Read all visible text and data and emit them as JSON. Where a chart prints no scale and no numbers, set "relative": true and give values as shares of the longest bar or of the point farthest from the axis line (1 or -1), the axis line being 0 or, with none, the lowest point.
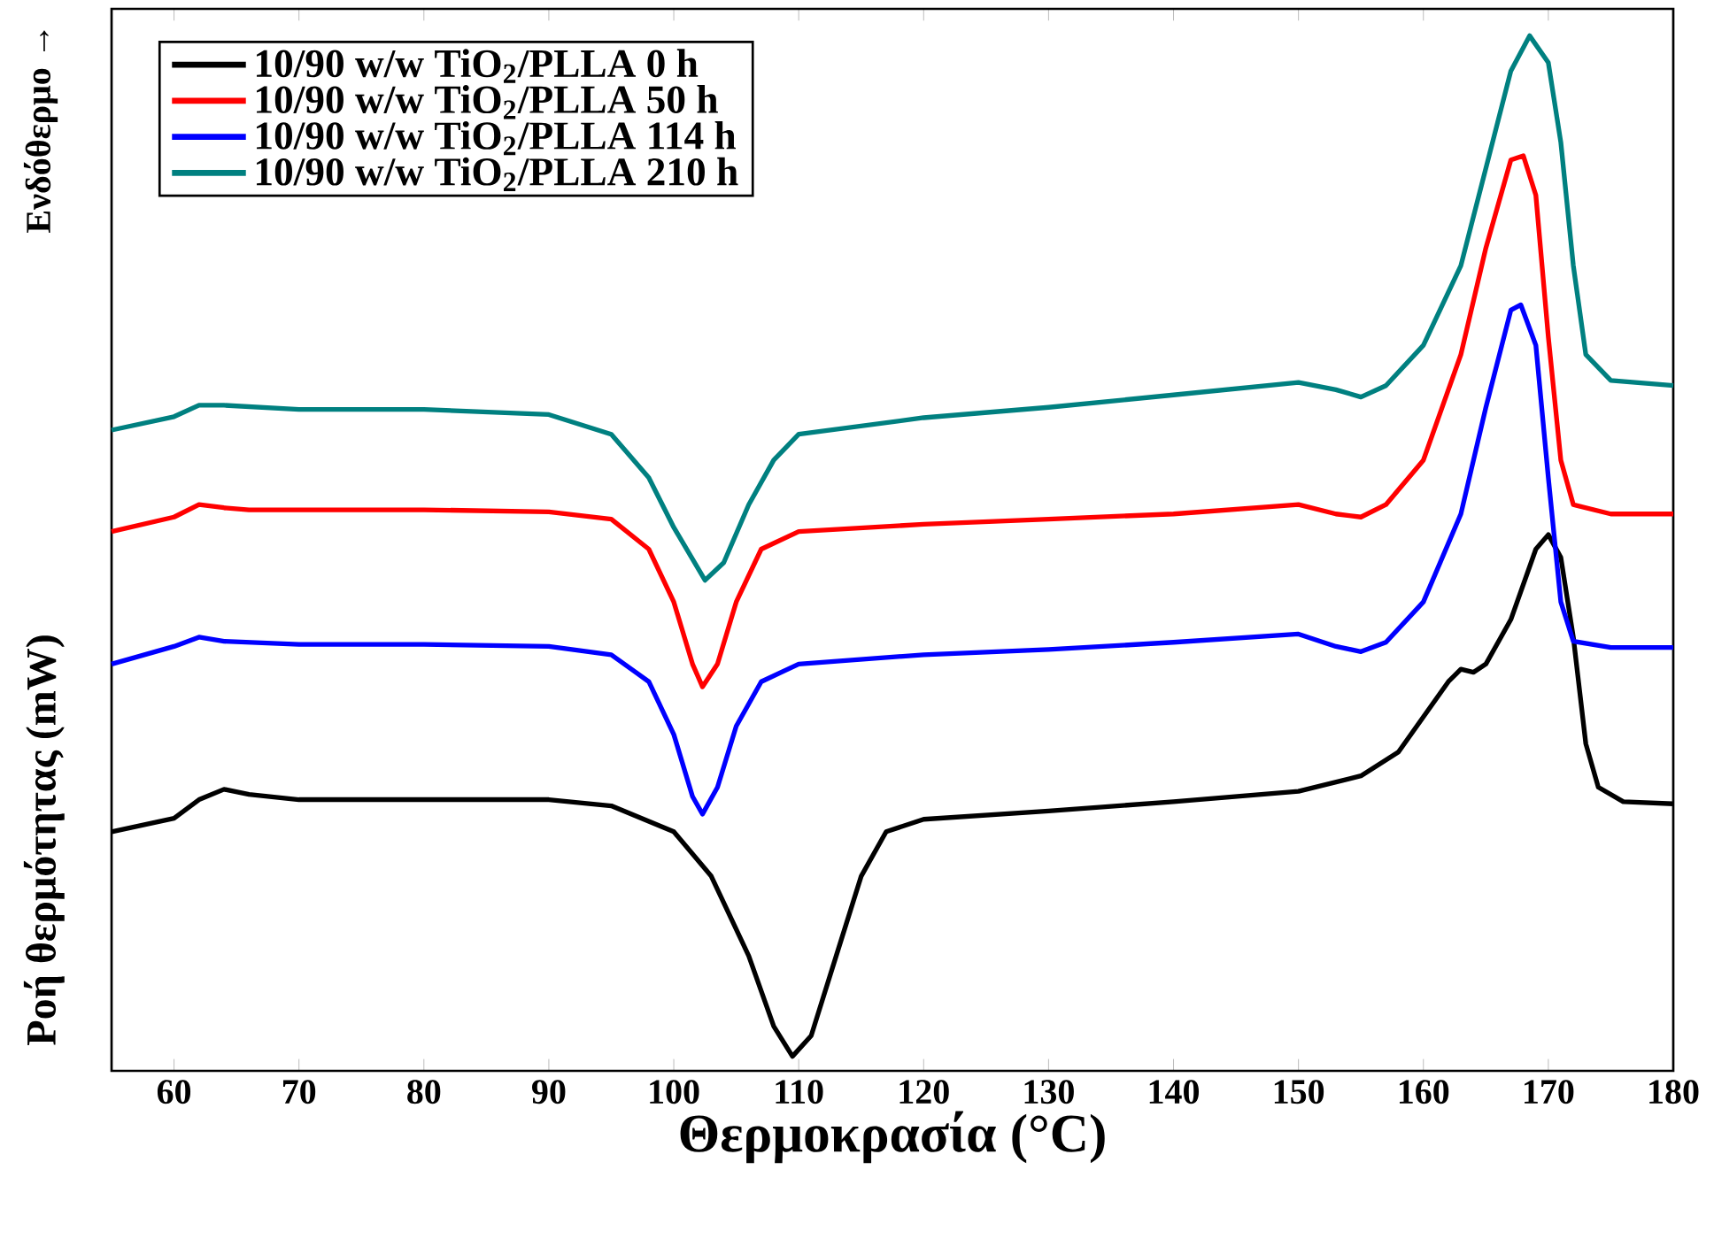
{
  "chart_data": {
    "type": "line",
    "relative": true,
    "xlabel": "Θερμοκρασία (°C)",
    "ylabel": "Ροή θερμότητας (mW)",
    "annotations": [
      "Ενδόθερμο →"
    ],
    "xlim": [
      55,
      180
    ],
    "xticks": [
      60,
      70,
      80,
      90,
      100,
      110,
      120,
      130,
      140,
      150,
      160,
      170,
      180
    ],
    "legend": "top left",
    "series": [
      {
        "name": "10/90 w/w TiO$_{2}$/PLLA 0 h",
        "color": "#000000",
        "x": [
          55,
          60,
          62,
          64,
          66,
          70,
          80,
          90,
          95,
          100,
          103,
          106,
          108,
          109.5,
          111,
          113,
          115,
          117,
          120,
          130,
          140,
          150,
          155,
          158,
          160,
          162,
          163,
          164,
          165,
          167,
          169,
          170,
          171,
          172,
          173,
          174,
          176,
          180
        ],
        "values": [
          0.231,
          0.244,
          0.262,
          0.272,
          0.267,
          0.262,
          0.262,
          0.262,
          0.256,
          0.231,
          0.188,
          0.111,
          0.043,
          0.014,
          0.034,
          0.111,
          0.188,
          0.231,
          0.243,
          0.251,
          0.26,
          0.27,
          0.285,
          0.308,
          0.342,
          0.376,
          0.388,
          0.385,
          0.393,
          0.436,
          0.504,
          0.518,
          0.496,
          0.419,
          0.316,
          0.274,
          0.26,
          0.258
        ]
      },
      {
        "name": "10/90 w/w TiO$_{2}$/PLLA 50 h",
        "color": "#ff0000",
        "x": [
          55,
          60,
          62,
          64,
          66,
          70,
          80,
          90,
          95,
          98,
          100,
          101.5,
          102.3,
          103.5,
          105,
          107,
          110,
          120,
          130,
          140,
          150,
          153,
          155,
          157,
          160,
          163,
          165,
          167,
          168,
          169,
          170,
          171,
          172,
          175,
          180
        ],
        "values": [
          0.521,
          0.535,
          0.547,
          0.544,
          0.542,
          0.542,
          0.542,
          0.54,
          0.533,
          0.504,
          0.453,
          0.393,
          0.371,
          0.393,
          0.453,
          0.504,
          0.521,
          0.528,
          0.533,
          0.538,
          0.547,
          0.538,
          0.535,
          0.547,
          0.59,
          0.692,
          0.795,
          0.88,
          0.884,
          0.846,
          0.709,
          0.59,
          0.547,
          0.538,
          0.538
        ]
      },
      {
        "name": "10/90 w/w TiO$_{2}$/PLLA 114 h",
        "color": "#0000ff",
        "x": [
          55,
          60,
          62,
          64,
          70,
          80,
          90,
          95,
          98,
          100,
          101.5,
          102.3,
          103.5,
          105,
          107,
          110,
          120,
          130,
          140,
          150,
          153,
          155,
          157,
          160,
          163,
          165,
          167,
          167.8,
          169,
          170,
          171,
          172,
          175,
          180
        ],
        "values": [
          0.393,
          0.41,
          0.419,
          0.415,
          0.412,
          0.412,
          0.41,
          0.402,
          0.376,
          0.325,
          0.265,
          0.248,
          0.274,
          0.333,
          0.376,
          0.393,
          0.402,
          0.407,
          0.414,
          0.422,
          0.41,
          0.405,
          0.414,
          0.453,
          0.538,
          0.641,
          0.735,
          0.74,
          0.701,
          0.573,
          0.453,
          0.415,
          0.409,
          0.409
        ]
      },
      {
        "name": "10/90 w/w TiO$_{2}$/PLLA 210 h",
        "color": "#008080",
        "x": [
          55,
          60,
          62,
          64,
          70,
          80,
          90,
          95,
          98,
          100,
          102.5,
          104,
          106,
          108,
          110,
          120,
          130,
          140,
          150,
          153,
          155,
          157,
          160,
          163,
          165,
          167,
          168.5,
          170,
          171,
          172,
          173,
          175,
          180
        ],
        "values": [
          0.619,
          0.632,
          0.643,
          0.643,
          0.639,
          0.639,
          0.634,
          0.615,
          0.573,
          0.525,
          0.474,
          0.491,
          0.547,
          0.59,
          0.615,
          0.631,
          0.641,
          0.653,
          0.665,
          0.658,
          0.651,
          0.662,
          0.701,
          0.778,
          0.872,
          0.966,
          1,
          0.974,
          0.897,
          0.778,
          0.692,
          0.667,
          0.662
        ]
      }
    ]
  }
}
